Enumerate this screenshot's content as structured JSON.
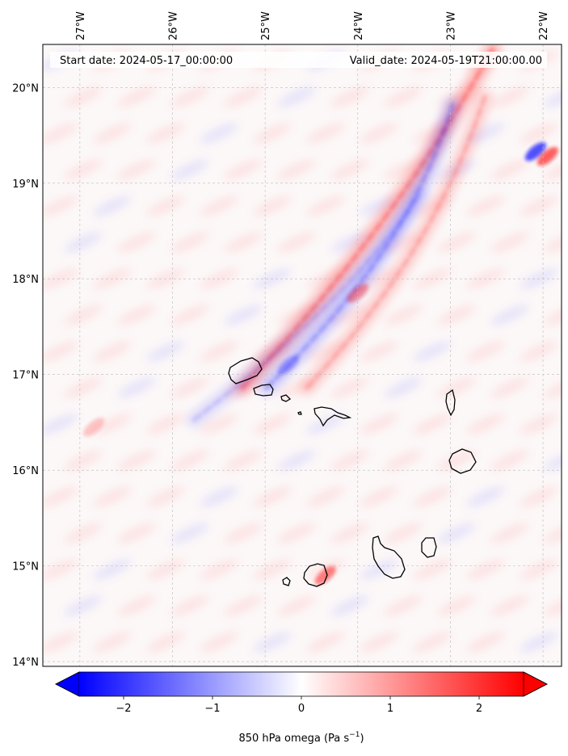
{
  "header": {
    "start_date": "Start date: 2024-05-17_00:00:00",
    "valid_date": "Valid_date: 2024-05-19T21:00:00.00"
  },
  "axes": {
    "lon_labels": [
      "27°W",
      "26°W",
      "25°W",
      "24°W",
      "23°W",
      "22°W"
    ],
    "lat_labels": [
      "20°N",
      "19°N",
      "18°N",
      "17°N",
      "16°N",
      "15°N",
      "14°N"
    ],
    "lon_values": [
      -27,
      -26,
      -25,
      -24,
      -23,
      -22
    ],
    "lat_values": [
      20,
      19,
      18,
      17,
      16,
      15,
      14
    ],
    "lon_range": [
      -27.4,
      -21.8
    ],
    "lat_range": [
      13.95,
      20.45
    ]
  },
  "colorbar": {
    "label_prefix": "850 hPa omega (Pa s",
    "label_exp": "−1",
    "label_suffix": ")",
    "tick_labels": [
      "−2",
      "−1",
      "0",
      "1",
      "2"
    ],
    "tick_values": [
      -2,
      -1,
      0,
      1,
      2
    ],
    "range": [
      -2.5,
      2.5
    ],
    "extend": "both",
    "cmap": "bwr",
    "levels": 50
  },
  "colors": {
    "negative": "#0000ff",
    "neutral": "#ffffff",
    "positive": "#ff0000",
    "coastline": "#000000",
    "grid": "#bbbbbb"
  },
  "features": {
    "bands": [
      {
        "sign": "positive",
        "strength": 0.8
      },
      {
        "sign": "negative",
        "strength": 0.6
      },
      {
        "sign": "positive",
        "strength": 0.5
      },
      {
        "sign": "negative",
        "strength": 0.35
      }
    ],
    "hotspots": [
      {
        "lon": -22.08,
        "lat": 19.33,
        "value": -2.0
      },
      {
        "lon": -21.95,
        "lat": 19.28,
        "value": 1.8
      },
      {
        "lon": -24.0,
        "lat": 17.85,
        "value": 1.1
      },
      {
        "lon": -24.75,
        "lat": 17.1,
        "value": -0.8
      },
      {
        "lon": -26.85,
        "lat": 16.45,
        "value": 0.6
      },
      {
        "lon": -24.35,
        "lat": 14.9,
        "value": 1.4
      }
    ]
  }
}
